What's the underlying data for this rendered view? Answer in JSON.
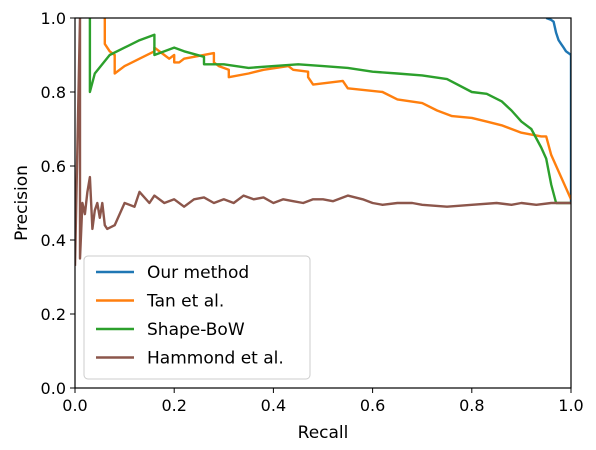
{
  "chart_data": {
    "type": "line",
    "xlabel": "Recall",
    "ylabel": "Precision",
    "xlim": [
      0,
      1
    ],
    "ylim": [
      0,
      1
    ],
    "xticks": [
      "0.0",
      "0.2",
      "0.4",
      "0.6",
      "0.8",
      "1.0"
    ],
    "yticks": [
      "0.0",
      "0.2",
      "0.4",
      "0.6",
      "0.8",
      "1.0"
    ],
    "grid": false,
    "legend": "bottom-left",
    "series": [
      {
        "name": "Our method",
        "color": "#1f77b4",
        "points": [
          [
            0.95,
            1.0
          ],
          [
            0.96,
            0.995
          ],
          [
            0.965,
            0.99
          ],
          [
            0.97,
            0.96
          ],
          [
            0.975,
            0.94
          ],
          [
            0.98,
            0.93
          ],
          [
            0.985,
            0.92
          ],
          [
            0.99,
            0.91
          ],
          [
            0.995,
            0.905
          ],
          [
            1.0,
            0.9
          ],
          [
            1.0,
            0.5
          ]
        ]
      },
      {
        "name": "Tan et al.",
        "color": "#ff7f0e",
        "points": [
          [
            0.06,
            1.0
          ],
          [
            0.06,
            0.93
          ],
          [
            0.07,
            0.91
          ],
          [
            0.08,
            0.9
          ],
          [
            0.08,
            0.85
          ],
          [
            0.1,
            0.87
          ],
          [
            0.13,
            0.89
          ],
          [
            0.16,
            0.91
          ],
          [
            0.16,
            0.92
          ],
          [
            0.18,
            0.9
          ],
          [
            0.19,
            0.89
          ],
          [
            0.2,
            0.9
          ],
          [
            0.2,
            0.88
          ],
          [
            0.21,
            0.88
          ],
          [
            0.22,
            0.89
          ],
          [
            0.28,
            0.905
          ],
          [
            0.28,
            0.88
          ],
          [
            0.29,
            0.87
          ],
          [
            0.31,
            0.86
          ],
          [
            0.31,
            0.84
          ],
          [
            0.35,
            0.85
          ],
          [
            0.38,
            0.86
          ],
          [
            0.43,
            0.87
          ],
          [
            0.44,
            0.86
          ],
          [
            0.47,
            0.855
          ],
          [
            0.47,
            0.84
          ],
          [
            0.48,
            0.82
          ],
          [
            0.54,
            0.83
          ],
          [
            0.55,
            0.81
          ],
          [
            0.62,
            0.8
          ],
          [
            0.65,
            0.78
          ],
          [
            0.7,
            0.77
          ],
          [
            0.73,
            0.75
          ],
          [
            0.76,
            0.735
          ],
          [
            0.8,
            0.73
          ],
          [
            0.83,
            0.72
          ],
          [
            0.86,
            0.71
          ],
          [
            0.88,
            0.7
          ],
          [
            0.9,
            0.69
          ],
          [
            0.94,
            0.68
          ],
          [
            0.95,
            0.68
          ],
          [
            0.96,
            0.63
          ],
          [
            1.0,
            0.51
          ]
        ]
      },
      {
        "name": "Shape-BoW",
        "color": "#2ca02c",
        "points": [
          [
            0.03,
            1.0
          ],
          [
            0.03,
            0.8
          ],
          [
            0.04,
            0.85
          ],
          [
            0.07,
            0.9
          ],
          [
            0.1,
            0.92
          ],
          [
            0.13,
            0.94
          ],
          [
            0.16,
            0.955
          ],
          [
            0.16,
            0.9
          ],
          [
            0.2,
            0.92
          ],
          [
            0.22,
            0.91
          ],
          [
            0.26,
            0.895
          ],
          [
            0.26,
            0.875
          ],
          [
            0.3,
            0.875
          ],
          [
            0.35,
            0.865
          ],
          [
            0.4,
            0.87
          ],
          [
            0.45,
            0.875
          ],
          [
            0.5,
            0.87
          ],
          [
            0.55,
            0.865
          ],
          [
            0.6,
            0.855
          ],
          [
            0.65,
            0.85
          ],
          [
            0.7,
            0.845
          ],
          [
            0.75,
            0.835
          ],
          [
            0.8,
            0.8
          ],
          [
            0.83,
            0.795
          ],
          [
            0.86,
            0.775
          ],
          [
            0.88,
            0.75
          ],
          [
            0.9,
            0.72
          ],
          [
            0.92,
            0.7
          ],
          [
            0.94,
            0.65
          ],
          [
            0.95,
            0.62
          ],
          [
            0.96,
            0.55
          ],
          [
            0.97,
            0.5
          ],
          [
            1.0,
            0.5
          ]
        ]
      },
      {
        "name": "Hammond et al.",
        "color": "#8c564b",
        "points": [
          [
            0.0,
            0.33
          ],
          [
            0.01,
            1.0
          ],
          [
            0.01,
            0.35
          ],
          [
            0.015,
            0.5
          ],
          [
            0.02,
            0.47
          ],
          [
            0.025,
            0.53
          ],
          [
            0.03,
            0.57
          ],
          [
            0.035,
            0.43
          ],
          [
            0.04,
            0.48
          ],
          [
            0.045,
            0.5
          ],
          [
            0.05,
            0.46
          ],
          [
            0.055,
            0.5
          ],
          [
            0.06,
            0.44
          ],
          [
            0.065,
            0.43
          ],
          [
            0.08,
            0.44
          ],
          [
            0.1,
            0.5
          ],
          [
            0.12,
            0.49
          ],
          [
            0.13,
            0.53
          ],
          [
            0.15,
            0.5
          ],
          [
            0.16,
            0.52
          ],
          [
            0.18,
            0.5
          ],
          [
            0.2,
            0.51
          ],
          [
            0.22,
            0.49
          ],
          [
            0.24,
            0.51
          ],
          [
            0.26,
            0.515
          ],
          [
            0.28,
            0.5
          ],
          [
            0.3,
            0.51
          ],
          [
            0.32,
            0.5
          ],
          [
            0.34,
            0.52
          ],
          [
            0.36,
            0.51
          ],
          [
            0.38,
            0.515
          ],
          [
            0.4,
            0.5
          ],
          [
            0.42,
            0.51
          ],
          [
            0.44,
            0.505
          ],
          [
            0.46,
            0.5
          ],
          [
            0.48,
            0.51
          ],
          [
            0.5,
            0.51
          ],
          [
            0.52,
            0.505
          ],
          [
            0.55,
            0.52
          ],
          [
            0.58,
            0.51
          ],
          [
            0.6,
            0.5
          ],
          [
            0.62,
            0.495
          ],
          [
            0.65,
            0.5
          ],
          [
            0.68,
            0.5
          ],
          [
            0.7,
            0.495
          ],
          [
            0.75,
            0.49
          ],
          [
            0.8,
            0.495
          ],
          [
            0.85,
            0.5
          ],
          [
            0.88,
            0.495
          ],
          [
            0.9,
            0.5
          ],
          [
            0.93,
            0.495
          ],
          [
            0.96,
            0.5
          ],
          [
            1.0,
            0.5
          ]
        ]
      }
    ]
  }
}
